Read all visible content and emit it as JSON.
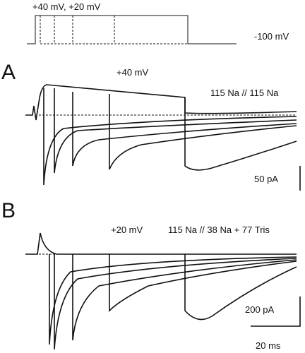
{
  "protocol": {
    "label_steps": "+40 mV, +20 mV",
    "label_hold": "-100 mV"
  },
  "panel_a": {
    "letter": "A",
    "step": "+40 mV",
    "solutions": "115 Na // 115 Na",
    "scale_current": "50 pA"
  },
  "panel_b": {
    "letter": "B",
    "step": "+20 mV",
    "solutions": "115 Na // 38 Na + 77 Tris",
    "scale_current": "200 pA",
    "scale_time": "20 ms"
  }
}
